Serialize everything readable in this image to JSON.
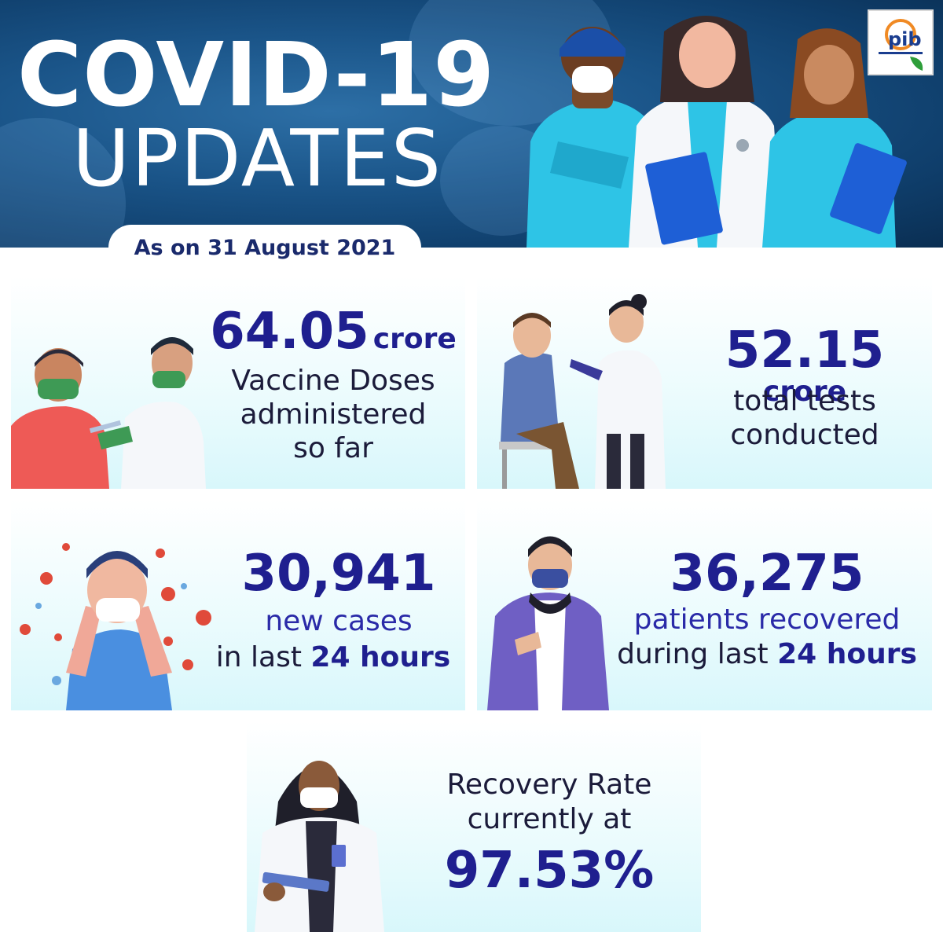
{
  "header": {
    "title_line1": "COVID-19",
    "title_line2": "UPDATES",
    "date": "As on 31 August 2021",
    "logo_text": "pib"
  },
  "cards": {
    "vaccine": {
      "value": "64.05",
      "unit": "crore",
      "line1": "Vaccine Doses",
      "line2": "administered",
      "line3": "so far"
    },
    "tests": {
      "value": "52.15",
      "unit": "crore",
      "line1": "total tests",
      "line2": "conducted"
    },
    "new_cases": {
      "value": "30,941",
      "line1": "new cases",
      "line2_prefix": "in last",
      "line2_bold": "24 hours"
    },
    "recovered": {
      "value": "36,275",
      "line1": "patients recovered",
      "line2_prefix": "during last",
      "line2_bold": "24 hours"
    },
    "recovery_rate": {
      "line1": "Recovery Rate",
      "line2": "currently at",
      "value": "97.53%"
    }
  },
  "colors": {
    "header_bg": "#1a5488",
    "accent_navy": "#1f1f8f",
    "card_bg": "#eafbfd",
    "virus_red": "#e04a3a"
  },
  "icons": [
    "pib-logo-icon",
    "doctors-illustration",
    "vaccination-illustration",
    "swab-test-illustration",
    "sneezing-person-illustration",
    "masked-man-illustration",
    "doctor-clipboard-illustration"
  ]
}
